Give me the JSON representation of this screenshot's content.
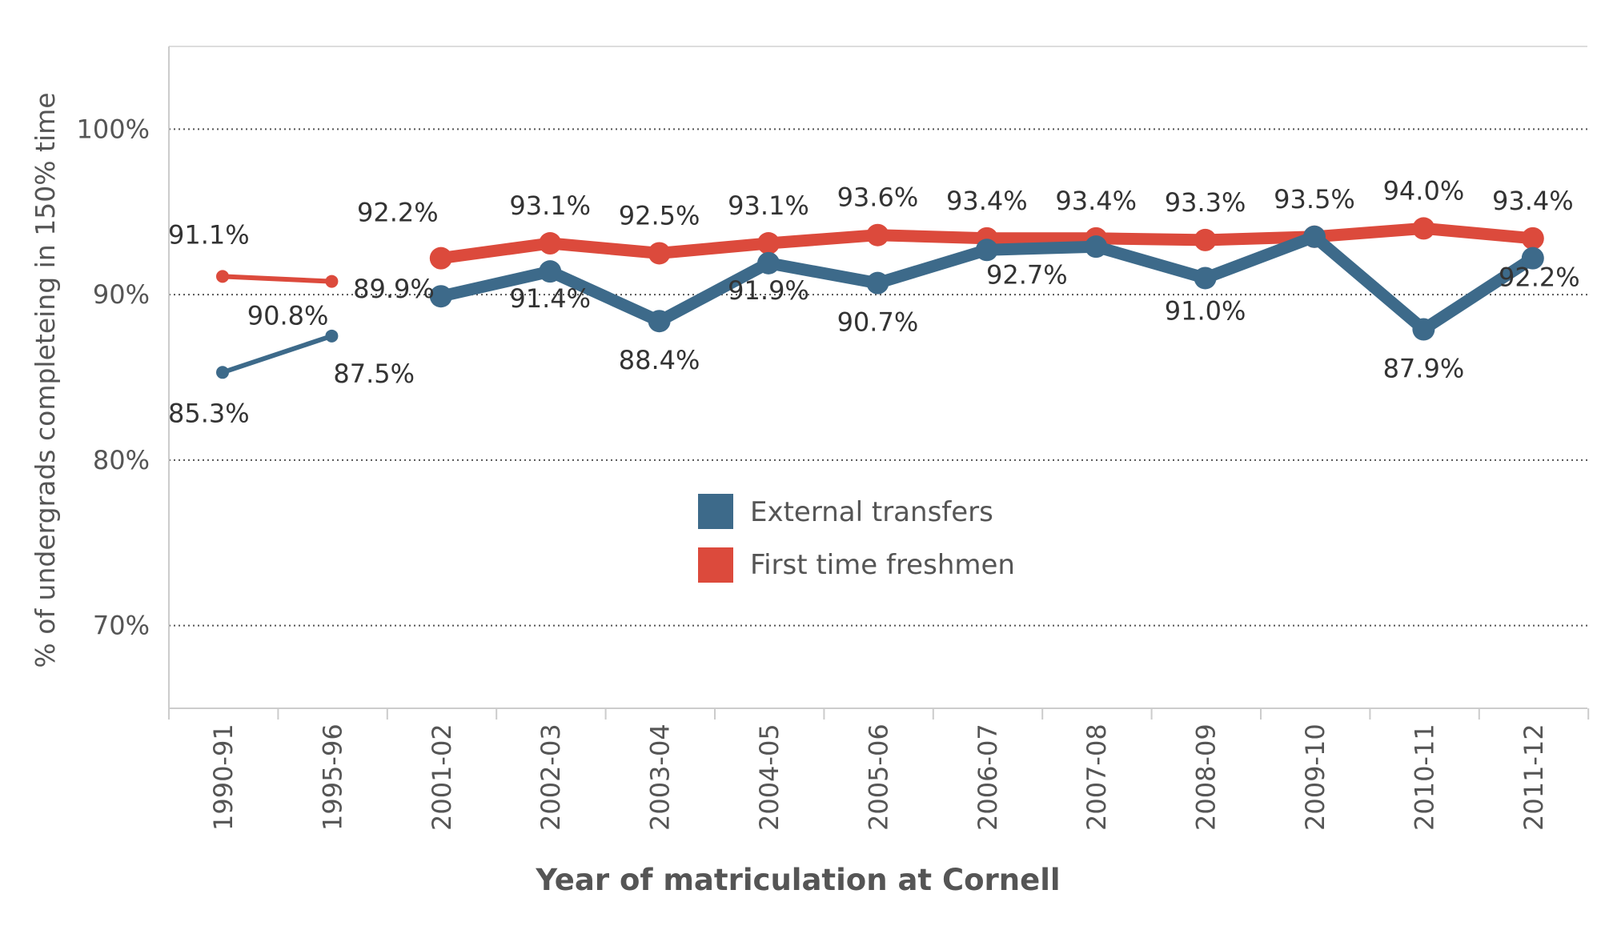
{
  "chart_data": {
    "type": "line",
    "title": "",
    "xlabel": "Year of matriculation at Cornell",
    "ylabel": "% of undergrads completeing in 150% time",
    "ylim": [
      65,
      105
    ],
    "yticks": [
      70,
      80,
      90,
      100
    ],
    "ytick_labels": [
      "70%",
      "80%",
      "90%",
      "100%"
    ],
    "grid": "horizontal dotted",
    "categories": [
      "1990-91",
      "1995-96",
      "2001-02",
      "2002-03",
      "2003-04",
      "2004-05",
      "2005-06",
      "2006-07",
      "2007-08",
      "2008-09",
      "2009-10",
      "2010-11",
      "2011-12"
    ],
    "series": [
      {
        "name": "External transfers",
        "color": "#3d6a8a",
        "values": [
          85.3,
          87.5,
          89.9,
          91.4,
          88.4,
          91.9,
          90.7,
          92.7,
          92.9,
          91.0,
          93.5,
          87.9,
          92.2
        ],
        "labels": [
          "85.3%",
          "87.5%",
          "89.9%",
          "91.4%",
          "88.4%",
          "91.9%",
          "90.7%",
          "92.7%",
          "",
          "91.0%",
          "",
          "87.9%",
          "92.2%"
        ]
      },
      {
        "name": "First time freshmen",
        "color": "#dc4a3c",
        "values": [
          91.1,
          90.8,
          92.2,
          93.1,
          92.5,
          93.1,
          93.6,
          93.4,
          93.4,
          93.3,
          93.5,
          94.0,
          93.4
        ],
        "labels": [
          "91.1%",
          "90.8%",
          "92.2%",
          "93.1%",
          "92.5%",
          "93.1%",
          "93.6%",
          "93.4%",
          "93.4%",
          "93.3%",
          "93.5%",
          "94.0%",
          "93.4%"
        ]
      }
    ],
    "legend": [
      "External transfers",
      "First time freshmen"
    ],
    "legend_placement": "center",
    "note": "Lines break between 1995-96 and 2001-02"
  }
}
